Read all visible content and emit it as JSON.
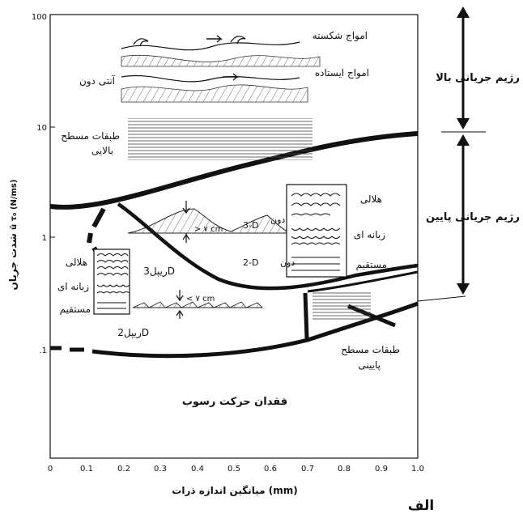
{
  "y_axis": {
    "label": "شدت جریان",
    "unit_label": "ū τ₀ (N/ms)",
    "ticks": [
      "100",
      "10",
      "1",
      ".1"
    ]
  },
  "x_axis": {
    "label": "میانگین اندازه ذرات",
    "unit": "(mm)",
    "ticks": [
      "0",
      "0.1",
      "0.2",
      "0.3",
      "0.4",
      "0.5",
      "0.6",
      "0.7",
      "0.8",
      "0.9",
      "1.0"
    ]
  },
  "regimes": {
    "upper": "رژیم جریانی بالا",
    "lower": "رژیم جریانی پایین"
  },
  "labels": {
    "breaking_waves": "امواج شکسته",
    "standing_waves": "امواج ایستاده",
    "antidune": "آنتی دون",
    "upper_flat_1": "طبقات مسطح",
    "upper_flat_2": "بالایی",
    "lunate_right": "هلالی",
    "tongue_right": "زبانه ای",
    "straight_right": "مستقیم",
    "dune_3d_num": "3-D",
    "dune_3d_word": "دون",
    "dune_2d_num": "2-D",
    "dune_2d_word": "دون",
    "height_upper": "> ۷ cm",
    "height_lower": "< ۷ cm",
    "lunate_left": "هلالی",
    "tongue_left": "زبانه ای",
    "straight_left": "مستقیم",
    "ripple_3d": "ریپل3D",
    "ripple_2d": "ریپل2D",
    "lower_flat_1": "طبقات مسطح",
    "lower_flat_2": "پایینی",
    "no_movement": "فقدان حرکت رسوب",
    "panel_letter": "الف"
  }
}
